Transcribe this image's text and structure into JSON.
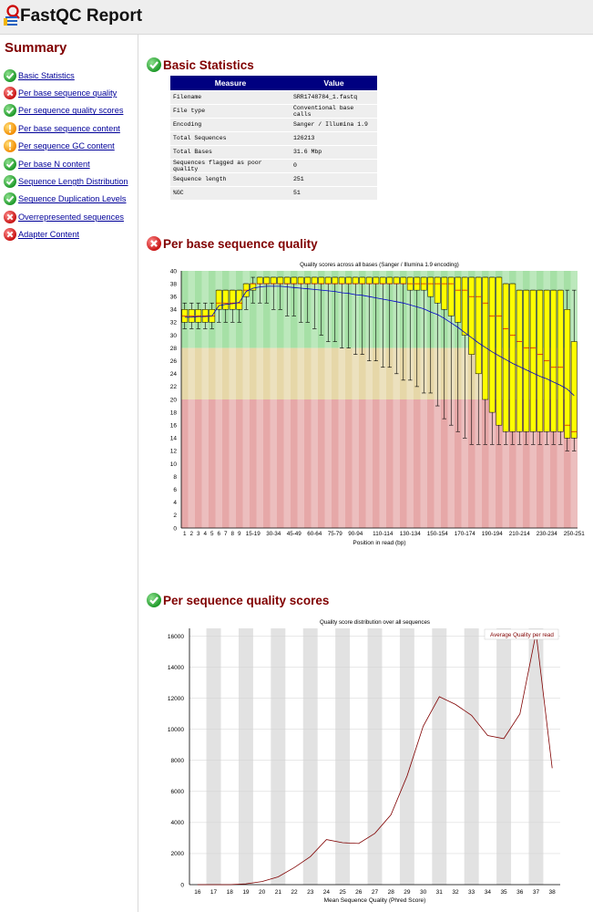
{
  "app": {
    "title": "FastQC Report"
  },
  "summary": {
    "heading": "Summary",
    "items": [
      {
        "label": "Basic Statistics",
        "status": "pass"
      },
      {
        "label": "Per base sequence quality",
        "status": "fail"
      },
      {
        "label": "Per sequence quality scores",
        "status": "pass"
      },
      {
        "label": "Per base sequence content",
        "status": "warn"
      },
      {
        "label": "Per sequence GC content",
        "status": "warn"
      },
      {
        "label": "Per base N content",
        "status": "pass"
      },
      {
        "label": "Sequence Length Distribution",
        "status": "pass"
      },
      {
        "label": "Sequence Duplication Levels",
        "status": "pass"
      },
      {
        "label": "Overrepresented sequences",
        "status": "fail"
      },
      {
        "label": "Adapter Content",
        "status": "fail"
      }
    ]
  },
  "basic_stats": {
    "title": "Basic Statistics",
    "status": "pass",
    "headers": [
      "Measure",
      "Value"
    ],
    "rows": [
      [
        "Filename",
        "SRR1748784_1.fastq"
      ],
      [
        "File type",
        "Conventional base calls"
      ],
      [
        "Encoding",
        "Sanger / Illumina 1.9"
      ],
      [
        "Total Sequences",
        "126213"
      ],
      [
        "Total Bases",
        "31.6 Mbp"
      ],
      [
        "Sequences flagged as poor quality",
        "0"
      ],
      [
        "Sequence length",
        "251"
      ],
      [
        "%GC",
        "51"
      ]
    ]
  },
  "per_base_quality": {
    "title": "Per base sequence quality",
    "status": "fail"
  },
  "per_seq_quality": {
    "title": "Per sequence quality scores",
    "status": "pass"
  },
  "colors": {
    "header_bg": "#eeeeee",
    "section_title": "#800000",
    "link": "#000099",
    "table_header": "#000080",
    "box_fill": "#ffff00",
    "mean_line": "#0000cc",
    "zone_good": "#a6e0a6",
    "zone_warn": "#e6d7a8",
    "zone_bad": "#e6a8a8",
    "quality_line": "#800000"
  },
  "chart_data": [
    {
      "type": "box",
      "title": "Quality scores across all bases (Sanger / Illumina 1.9 encoding)",
      "xlabel": "Position in read (bp)",
      "ylabel": "",
      "ylim": [
        0,
        40
      ],
      "yticks": [
        0,
        2,
        4,
        6,
        8,
        10,
        12,
        14,
        16,
        18,
        20,
        22,
        24,
        26,
        28,
        30,
        32,
        34,
        36,
        38,
        40
      ],
      "zones": [
        {
          "name": "good",
          "from": 28,
          "to": 40
        },
        {
          "name": "warn",
          "from": 20,
          "to": 28
        },
        {
          "name": "bad",
          "from": 0,
          "to": 20
        }
      ],
      "categories": [
        "1",
        "2",
        "3",
        "4",
        "5",
        "6",
        "7",
        "8",
        "9",
        "10-14",
        "15-19",
        "20-24",
        "25-29",
        "30-34",
        "35-39",
        "40-44",
        "45-49",
        "50-54",
        "55-59",
        "60-64",
        "65-69",
        "70-74",
        "75-79",
        "80-84",
        "85-89",
        "90-94",
        "95-99",
        "100-104",
        "105-109",
        "110-114",
        "115-119",
        "120-124",
        "125-129",
        "130-134",
        "135-139",
        "140-144",
        "145-149",
        "150-154",
        "155-159",
        "160-164",
        "165-169",
        "170-174",
        "175-179",
        "180-184",
        "185-189",
        "190-194",
        "195-199",
        "200-204",
        "205-209",
        "210-214",
        "215-219",
        "220-224",
        "225-229",
        "230-234",
        "235-239",
        "240-244",
        "245-249",
        "250-251"
      ],
      "tick_labels": [
        "1",
        "2",
        "3",
        "4",
        "5",
        "6",
        "7",
        "8",
        "9",
        "15-19",
        "30-34",
        "45-49",
        "60-64",
        "75-79",
        "90-94",
        "110-114",
        "130-134",
        "150-154",
        "170-174",
        "190-194",
        "210-214",
        "230-234",
        "250-251"
      ],
      "q1": [
        32,
        32,
        32,
        32,
        32,
        34,
        34,
        34,
        34,
        36,
        37,
        38,
        38,
        38,
        38,
        38,
        38,
        38,
        38,
        38,
        38,
        38,
        38,
        38,
        38,
        38,
        38,
        38,
        38,
        38,
        38,
        38,
        38,
        37,
        37,
        37,
        36,
        35,
        34,
        33,
        32,
        30,
        27,
        24,
        20,
        18,
        16,
        15,
        15,
        15,
        15,
        15,
        15,
        15,
        15,
        15,
        14,
        14
      ],
      "q3": [
        34,
        34,
        34,
        34,
        34,
        37,
        37,
        37,
        37,
        38,
        38,
        39,
        39,
        39,
        39,
        39,
        39,
        39,
        39,
        39,
        39,
        39,
        39,
        39,
        39,
        39,
        39,
        39,
        39,
        39,
        39,
        39,
        39,
        39,
        39,
        39,
        39,
        39,
        39,
        39,
        39,
        39,
        39,
        39,
        39,
        39,
        39,
        38,
        38,
        37,
        37,
        37,
        37,
        37,
        37,
        37,
        34,
        29
      ],
      "median": [
        33,
        33,
        33,
        33,
        33,
        35,
        35,
        35,
        35,
        37,
        38,
        38,
        38,
        38,
        38,
        38,
        38,
        38,
        38,
        38,
        38,
        38,
        38,
        38,
        38,
        38,
        38,
        38,
        38,
        38,
        38,
        38,
        38,
        38,
        38,
        38,
        38,
        38,
        38,
        38,
        37,
        37,
        36,
        36,
        35,
        33,
        33,
        31,
        30,
        29,
        28,
        28,
        27,
        26,
        25,
        25,
        16,
        15
      ],
      "low": [
        31,
        31,
        31,
        31,
        31,
        32,
        32,
        32,
        32,
        34,
        35,
        35,
        35,
        34,
        34,
        33,
        33,
        32,
        32,
        31,
        30,
        29,
        29,
        28,
        28,
        27,
        27,
        26,
        26,
        25,
        25,
        24,
        23,
        23,
        22,
        21,
        21,
        19,
        17,
        16,
        15,
        14,
        13,
        13,
        13,
        13,
        13,
        13,
        13,
        13,
        13,
        13,
        13,
        13,
        13,
        13,
        12,
        12
      ],
      "high": [
        35,
        35,
        35,
        35,
        35,
        37,
        37,
        37,
        37,
        38,
        39,
        39,
        39,
        39,
        39,
        39,
        39,
        39,
        39,
        39,
        39,
        39,
        39,
        39,
        39,
        39,
        39,
        39,
        39,
        39,
        39,
        39,
        39,
        39,
        39,
        39,
        39,
        39,
        39,
        39,
        39,
        39,
        39,
        39,
        39,
        39,
        39,
        38,
        38,
        37,
        37,
        37,
        37,
        37,
        37,
        37,
        37,
        37
      ],
      "mean": [
        32.8,
        32.8,
        32.9,
        32.9,
        33,
        34.6,
        34.8,
        34.9,
        35.1,
        36.8,
        37.3,
        37.5,
        37.6,
        37.6,
        37.6,
        37.5,
        37.4,
        37.3,
        37.2,
        37.1,
        37,
        36.9,
        36.8,
        36.6,
        36.5,
        36.3,
        36.2,
        36,
        35.8,
        35.6,
        35.4,
        35.2,
        35,
        34.7,
        34.4,
        34.1,
        33.6,
        33.2,
        32.6,
        31.9,
        31.2,
        30.4,
        29.6,
        28.8,
        28.1,
        27.4,
        26.8,
        26.2,
        25.6,
        25.1,
        24.6,
        24.1,
        23.6,
        23.2,
        22.7,
        22.2,
        21.6,
        20.6
      ]
    },
    {
      "type": "line",
      "title": "Quality score distribution over all sequences",
      "xlabel": "Mean Sequence Quality (Phred Score)",
      "ylabel": "",
      "x": [
        16,
        17,
        18,
        19,
        20,
        21,
        22,
        23,
        24,
        25,
        26,
        27,
        28,
        29,
        30,
        31,
        32,
        33,
        34,
        35,
        36,
        37,
        38
      ],
      "ylim": [
        0,
        16500
      ],
      "yticks": [
        0,
        2000,
        4000,
        6000,
        8000,
        10000,
        12000,
        14000,
        16000
      ],
      "series": [
        {
          "name": "Average Quality per read",
          "values": [
            0,
            0,
            0,
            50,
            200,
            500,
            1100,
            1800,
            2900,
            2700,
            2650,
            3300,
            4500,
            7000,
            10200,
            12100,
            11600,
            10900,
            9600,
            9400,
            11000,
            16200,
            7500
          ]
        }
      ],
      "legend": "top-right",
      "stripes": "alternating grey columns"
    }
  ]
}
